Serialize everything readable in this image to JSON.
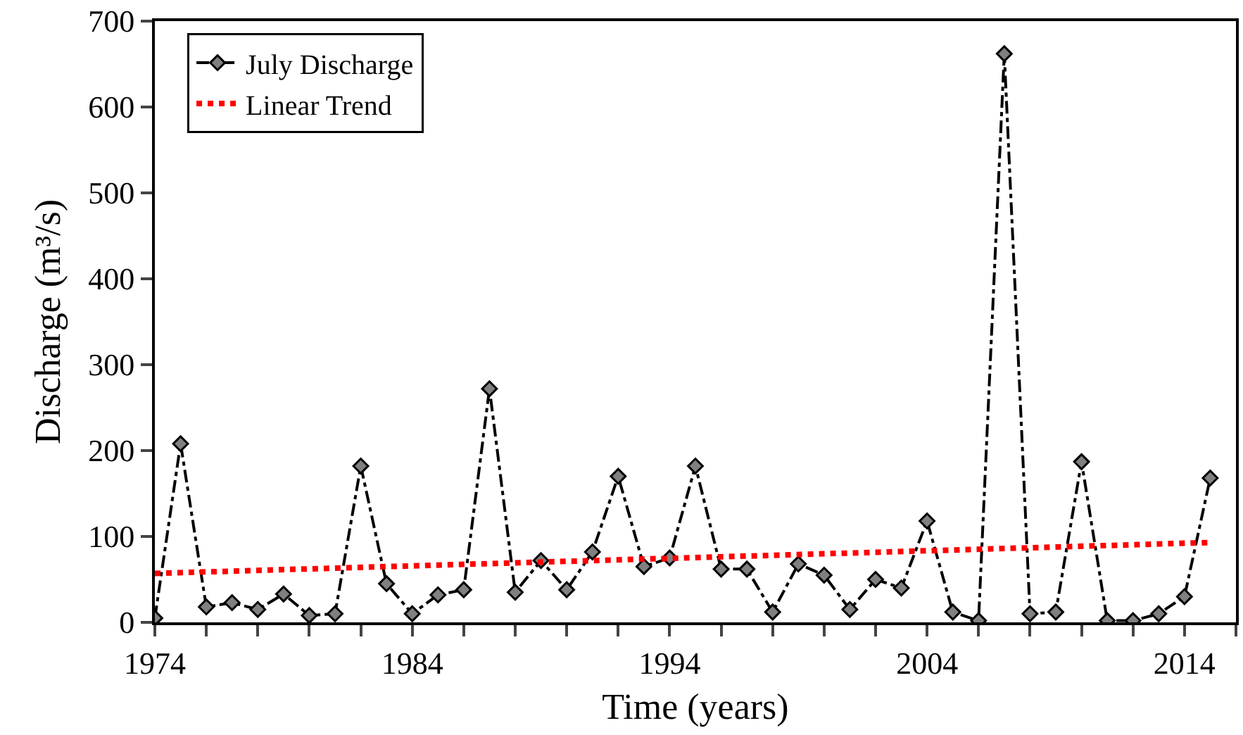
{
  "chart_data": {
    "type": "line",
    "xlabel": "Time (years)",
    "ylabel": "Discharge (m³/s)",
    "x": [
      1974,
      1975,
      1976,
      1977,
      1978,
      1979,
      1980,
      1981,
      1982,
      1983,
      1984,
      1985,
      1986,
      1987,
      1988,
      1989,
      1990,
      1991,
      1992,
      1993,
      1994,
      1995,
      1996,
      1997,
      1998,
      1999,
      2000,
      2001,
      2002,
      2003,
      2004,
      2005,
      2006,
      2007,
      2008,
      2009,
      2010,
      2011,
      2012,
      2013,
      2014,
      2015
    ],
    "series": [
      {
        "name": "July Discharge",
        "color": "#000000",
        "marker": "diamond",
        "line_style": "dashed",
        "values": [
          5,
          208,
          18,
          23,
          15,
          33,
          8,
          10,
          182,
          45,
          10,
          32,
          38,
          272,
          35,
          72,
          38,
          82,
          170,
          65,
          75,
          182,
          62,
          62,
          12,
          68,
          55,
          15,
          50,
          40,
          118,
          12,
          2,
          662,
          10,
          12,
          187,
          2,
          2,
          10,
          30,
          168
        ]
      },
      {
        "name": "Linear Trend",
        "type": "line",
        "color": "#ff0000",
        "marker": "none",
        "line_style": "dotted",
        "x": [
          1974,
          2015
        ],
        "values": [
          57,
          93
        ]
      }
    ],
    "xlim": [
      1974,
      2016
    ],
    "xticks": [
      1974,
      {
        "value": 1976,
        "label": null
      },
      {
        "value": 1978,
        "label": null
      },
      {
        "value": 1980,
        "label": null
      },
      {
        "value": 1982,
        "label": null
      },
      1984,
      {
        "value": 1986,
        "label": null
      },
      {
        "value": 1988,
        "label": null
      },
      {
        "value": 1990,
        "label": null
      },
      {
        "value": 1992,
        "label": null
      },
      1994,
      {
        "value": 1996,
        "label": null
      },
      {
        "value": 1998,
        "label": null
      },
      {
        "value": 2000,
        "label": null
      },
      {
        "value": 2002,
        "label": null
      },
      2004,
      {
        "value": 2006,
        "label": null
      },
      {
        "value": 2008,
        "label": null
      },
      {
        "value": 2010,
        "label": null
      },
      {
        "value": 2012,
        "label": null
      },
      2014,
      {
        "value": 2016,
        "label": null
      }
    ],
    "ylim": [
      0,
      700
    ],
    "yticks": [
      0,
      100,
      200,
      300,
      400,
      500,
      600,
      700
    ],
    "grid": false,
    "legend": "top left"
  }
}
